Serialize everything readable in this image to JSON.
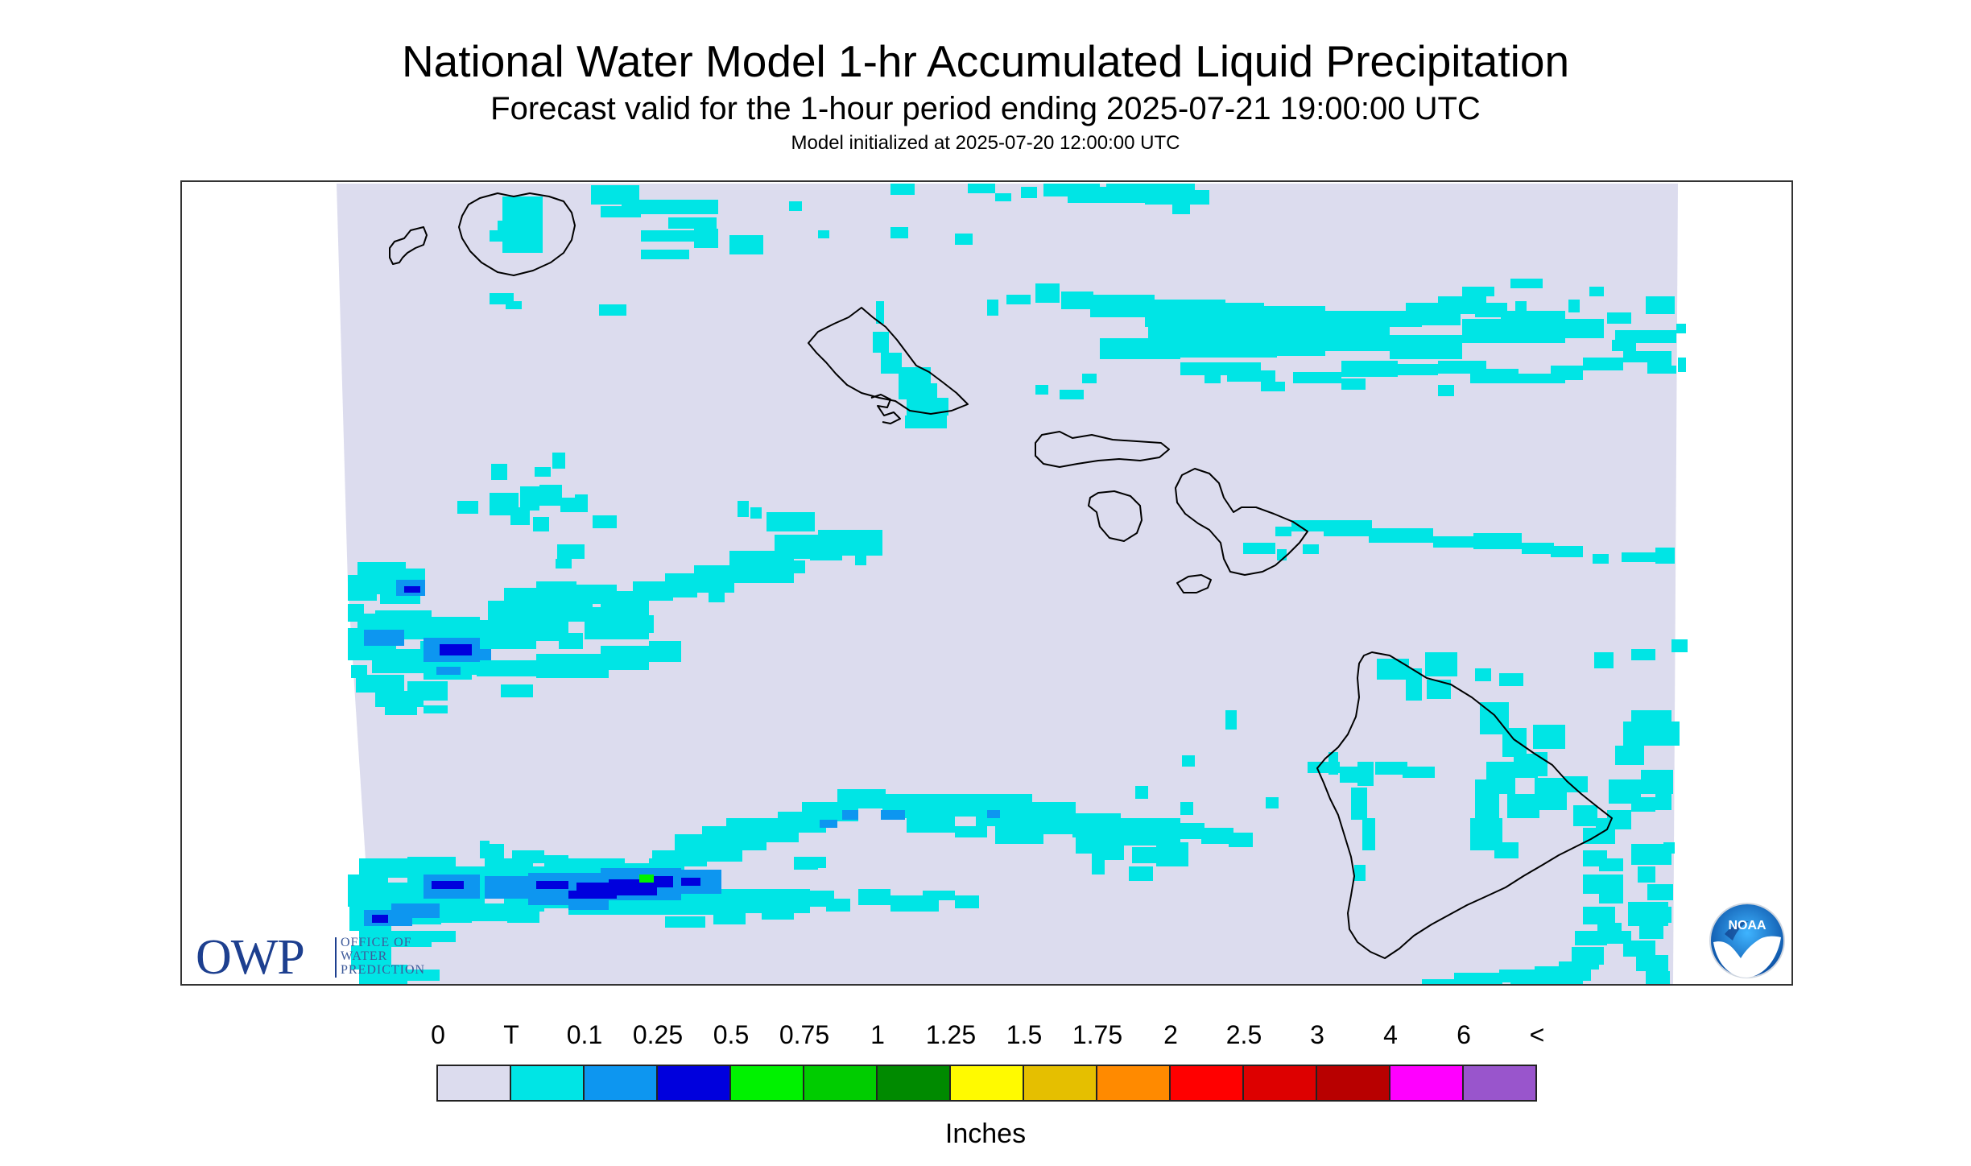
{
  "header": {
    "title": "National Water Model 1-hr Accumulated Liquid Precipitation",
    "subtitle": "Forecast valid for the 1-hour period ending 2025-07-21 19:00:00 UTC",
    "init_line": "Model initialized at 2025-07-20 12:00:00 UTC"
  },
  "map": {
    "background_color": "#dcdcee",
    "coastline_color": "#000000"
  },
  "logos": {
    "owp_mark": "OWP",
    "owp_line1": "OFFICE OF",
    "owp_line2": "WATER",
    "owp_line3": "PREDICTION",
    "noaa_text": "NOAA"
  },
  "legend": {
    "labels": [
      "0",
      "T",
      "0.1",
      "0.25",
      "0.5",
      "0.75",
      "1",
      "1.25",
      "1.5",
      "1.75",
      "2",
      "2.5",
      "3",
      "4",
      "6",
      "<"
    ],
    "colors": [
      "#dcdcee",
      "#00e5e5",
      "#0d96f0",
      "#0000dd",
      "#00f200",
      "#00cc00",
      "#008a00",
      "#fffa00",
      "#e5bf00",
      "#ff8a00",
      "#ff0000",
      "#dd0000",
      "#b80000",
      "#ff00ff",
      "#9955cc"
    ],
    "units": "Inches"
  }
}
